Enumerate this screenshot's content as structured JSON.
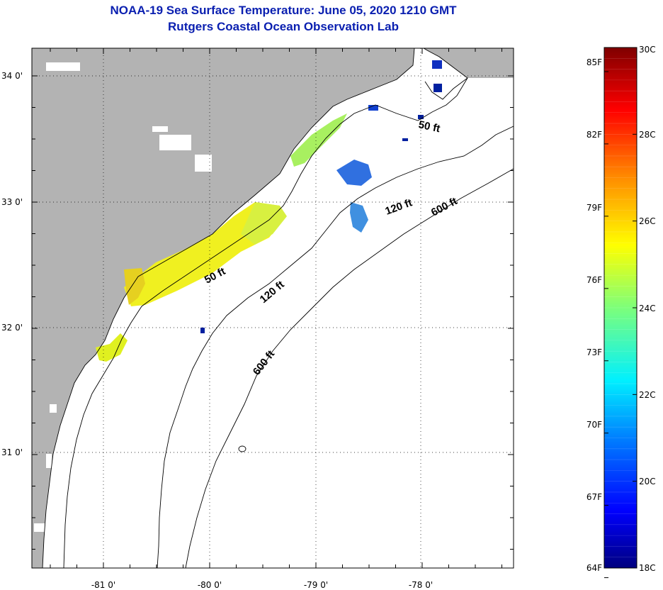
{
  "title": "NOAA-19 Sea Surface Temperature:  June 05, 2020 1210 GMT",
  "subtitle": "Rutgers Coastal Ocean Observation Lab",
  "map": {
    "land_color": "#b3b3b3",
    "ocean_color": "#ffffff",
    "grid": "dotted",
    "lon_labels": [
      "-81 0'",
      "-80 0'",
      "-79 0'",
      "-78 0'"
    ],
    "lat_labels": [
      "34 0'",
      "33 0'",
      "32 0'",
      "31 0'"
    ],
    "contour_labels": [
      "50 ft",
      "120 ft",
      "600 ft",
      "50 ft",
      "120 ft",
      "600 ft"
    ]
  },
  "colorbar": {
    "f_labels": [
      "85F",
      "82F",
      "79F",
      "76F",
      "73F",
      "70F",
      "67F",
      "64F"
    ],
    "c_labels": [
      "30C",
      "28C",
      "26C",
      "24C",
      "22C",
      "20C",
      "18C"
    ],
    "min_c": 18,
    "max_c": 30
  }
}
